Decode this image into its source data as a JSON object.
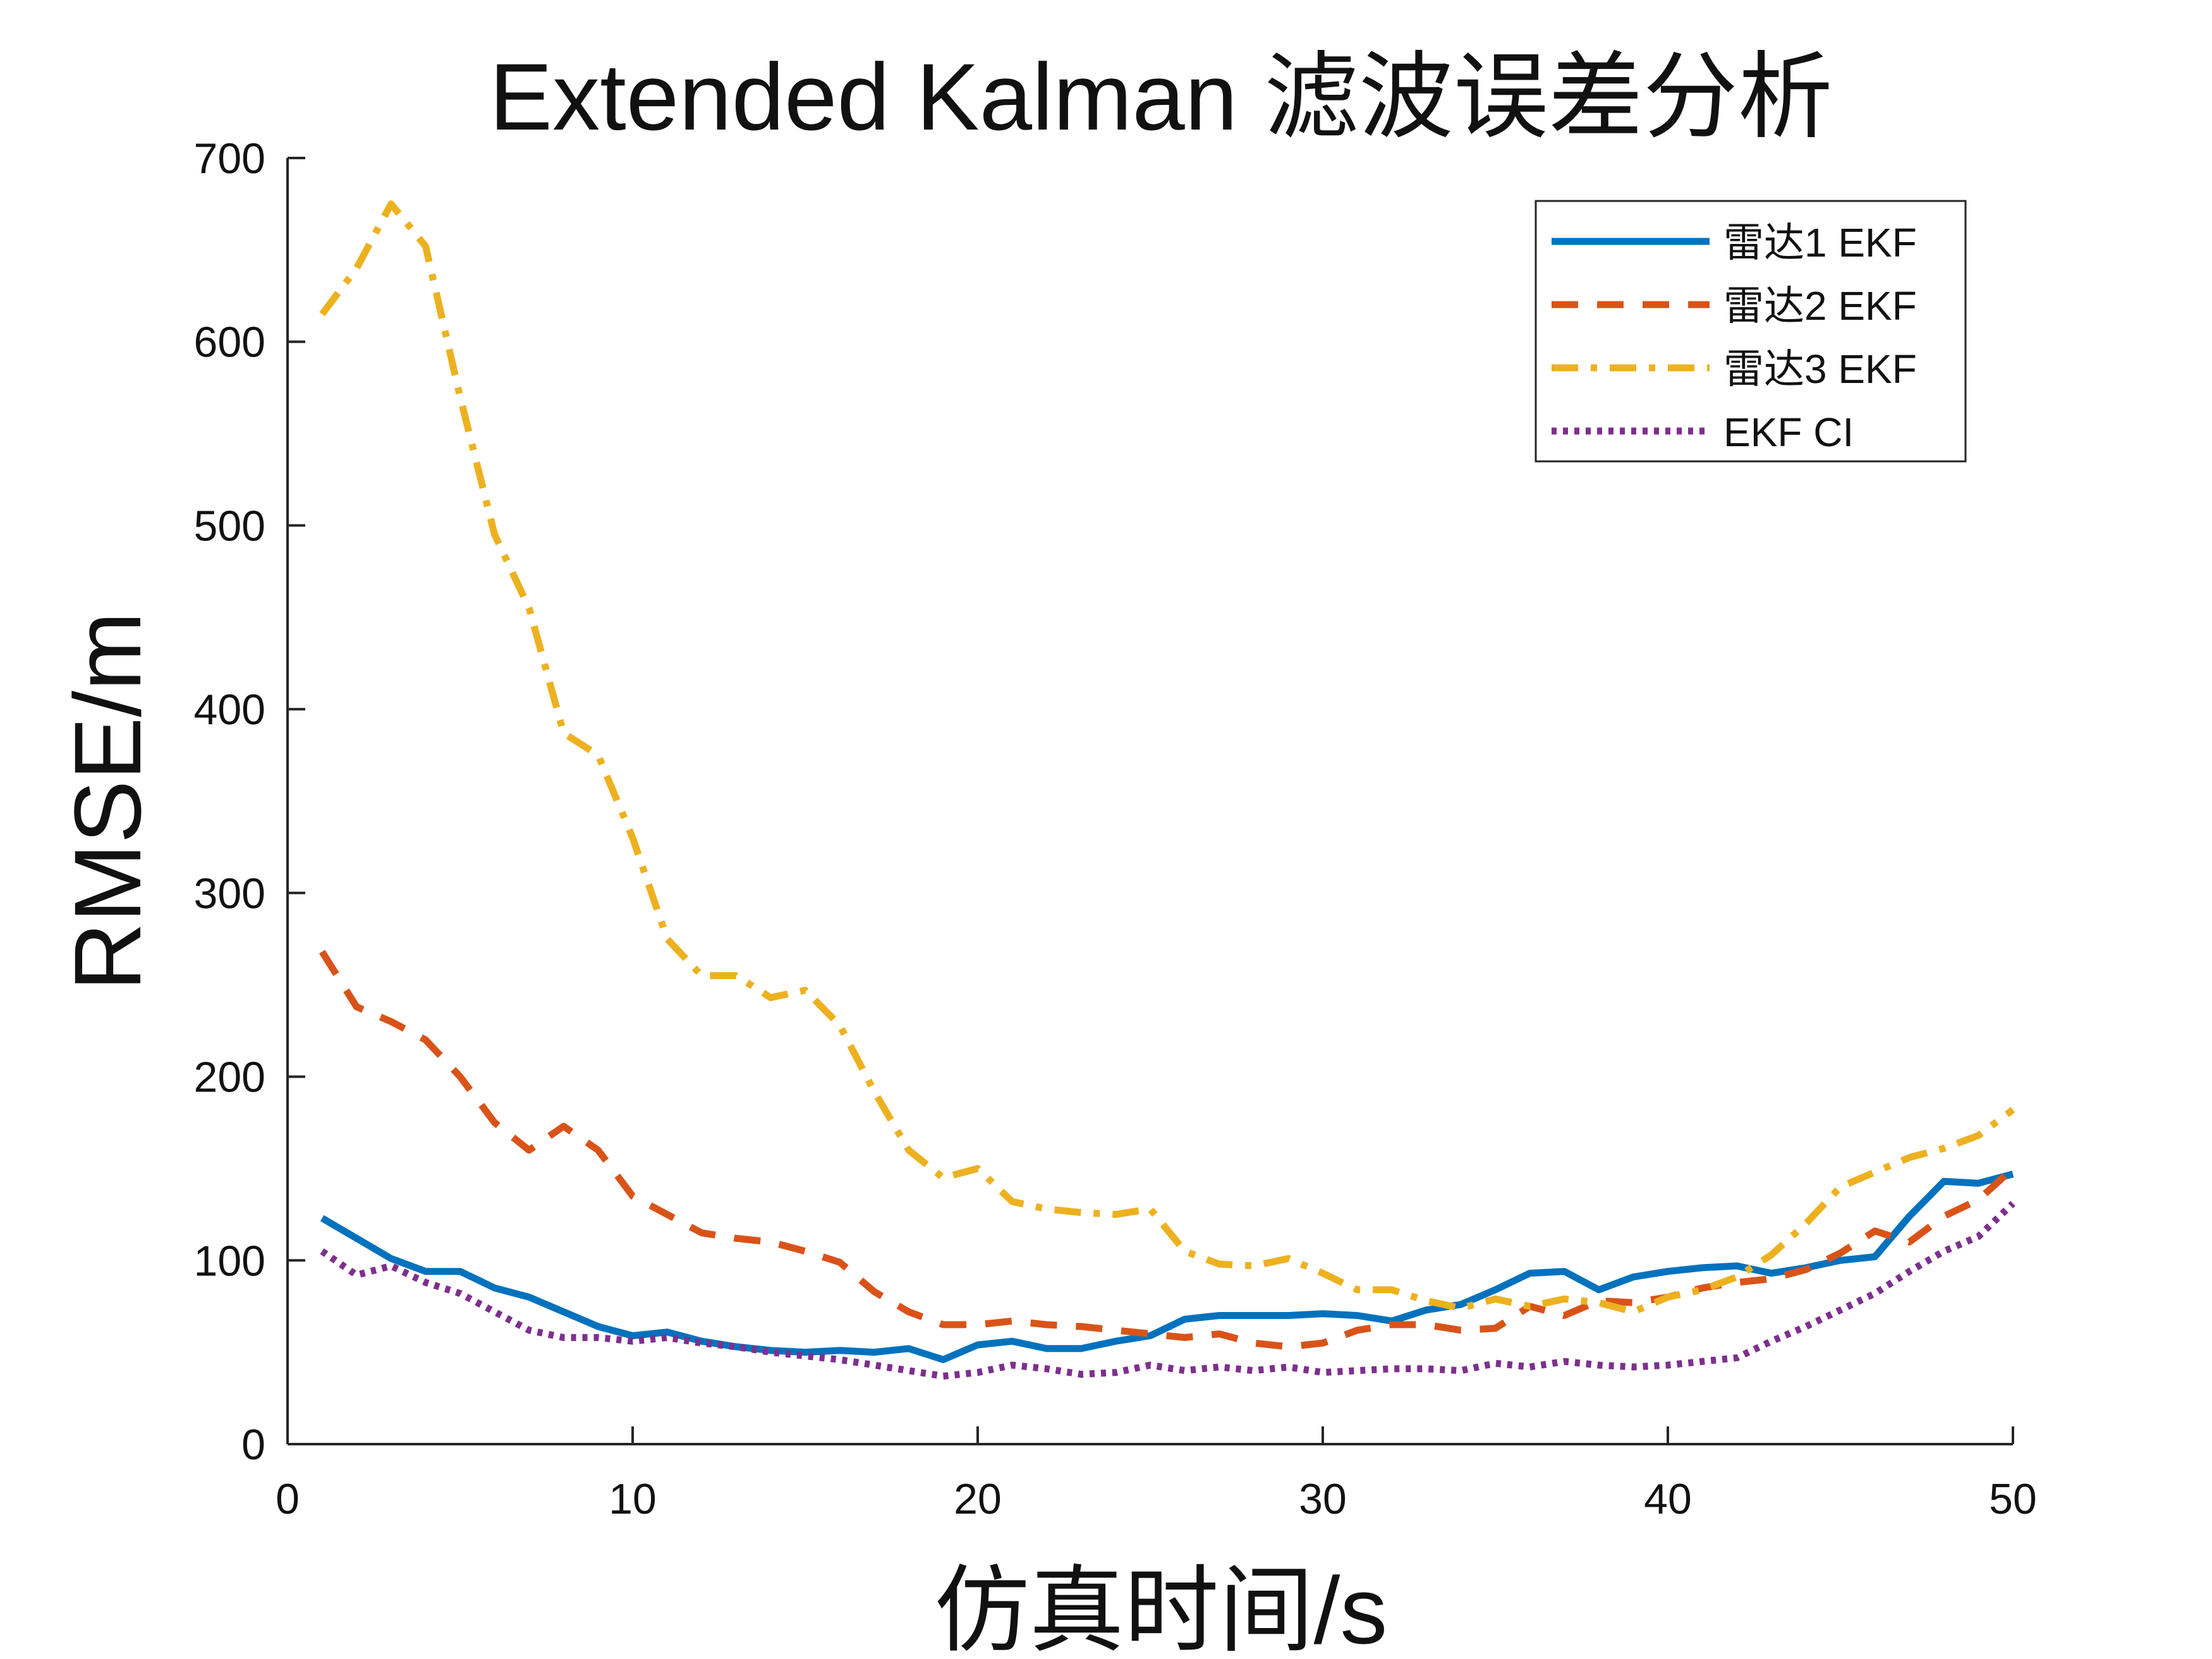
{
  "chart_data": {
    "type": "line",
    "title": "Extended Kalman 滤波误差分析",
    "xlabel": "仿真时间/s",
    "ylabel": "RMSE/m",
    "xlim": [
      0,
      50
    ],
    "ylim": [
      0,
      700
    ],
    "xticks": [
      0,
      10,
      20,
      30,
      40,
      50
    ],
    "yticks": [
      0,
      100,
      200,
      300,
      400,
      500,
      600,
      700
    ],
    "grid": false,
    "legend_position": "top-right",
    "x": [
      1,
      2,
      3,
      4,
      5,
      6,
      7,
      8,
      9,
      10,
      11,
      12,
      13,
      14,
      15,
      16,
      17,
      18,
      19,
      20,
      21,
      22,
      23,
      24,
      25,
      26,
      27,
      28,
      29,
      30,
      31,
      32,
      33,
      34,
      35,
      36,
      37,
      38,
      39,
      40,
      41,
      42,
      43,
      44,
      45,
      46,
      47,
      48,
      49,
      50
    ],
    "series": [
      {
        "name": "雷达1 EKF",
        "color": "#0072BD",
        "style": "solid",
        "values": [
          123,
          112,
          101,
          94,
          94,
          85,
          80,
          72,
          64,
          59,
          61,
          56,
          53,
          51,
          50,
          51,
          50,
          52,
          46,
          54,
          56,
          52,
          52,
          56,
          59,
          68,
          70,
          70,
          70,
          71,
          70,
          67,
          73,
          76,
          84,
          93,
          94,
          84,
          91,
          94,
          96,
          97,
          93,
          96,
          100,
          102,
          124,
          143,
          142,
          147
        ]
      },
      {
        "name": "雷达2 EKF",
        "color": "#D95319",
        "style": "dashed",
        "values": [
          268,
          238,
          230,
          220,
          200,
          175,
          160,
          173,
          160,
          135,
          125,
          115,
          112,
          110,
          105,
          99,
          83,
          72,
          65,
          65,
          67,
          65,
          64,
          62,
          60,
          58,
          60,
          55,
          53,
          55,
          62,
          65,
          65,
          62,
          63,
          75,
          70,
          78,
          77,
          80,
          85,
          88,
          90,
          95,
          104,
          116,
          110,
          124,
          133,
          150
        ]
      },
      {
        "name": "雷达3 EKF",
        "color": "#EDB120",
        "style": "dashdot",
        "values": [
          615,
          640,
          675,
          652,
          570,
          495,
          455,
          387,
          375,
          330,
          275,
          255,
          255,
          243,
          247,
          228,
          192,
          160,
          145,
          150,
          132,
          128,
          126,
          125,
          128,
          105,
          98,
          97,
          101,
          93,
          84,
          84,
          78,
          74,
          79,
          75,
          79,
          77,
          72,
          80,
          84,
          91,
          103,
          120,
          140,
          148,
          156,
          161,
          168,
          182
        ]
      },
      {
        "name": "EKF CI",
        "color": "#7E2F8E",
        "style": "dotted",
        "values": [
          105,
          92,
          97,
          88,
          82,
          72,
          62,
          58,
          58,
          56,
          58,
          55,
          53,
          50,
          48,
          46,
          43,
          40,
          37,
          39,
          43,
          41,
          38,
          39,
          43,
          40,
          42,
          40,
          42,
          39,
          40,
          41,
          41,
          40,
          44,
          42,
          45,
          43,
          42,
          43,
          45,
          47,
          56,
          64,
          73,
          82,
          94,
          105,
          113,
          131
        ]
      }
    ]
  }
}
